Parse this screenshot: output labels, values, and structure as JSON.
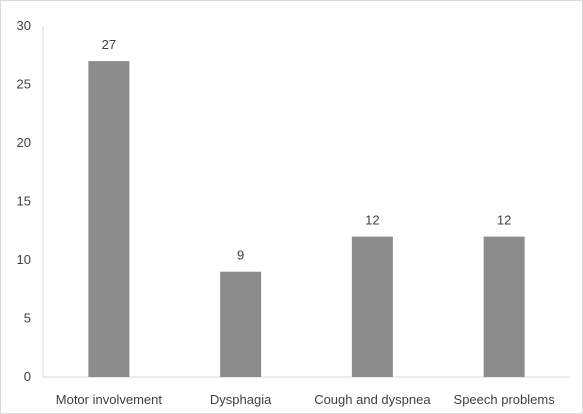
{
  "chart_data": {
    "type": "bar",
    "categories": [
      "Motor involvement",
      "Dysphagia",
      "Cough and dyspnea",
      "Speech problems"
    ],
    "values": [
      27,
      9,
      12,
      12
    ],
    "data_labels": [
      "27",
      "9",
      "12",
      "12"
    ],
    "title": "",
    "xlabel": "",
    "ylabel": "",
    "ylim": [
      0,
      30
    ],
    "yticks": [
      0,
      5,
      10,
      15,
      20,
      25,
      30
    ],
    "ytick_labels": [
      "0",
      "5",
      "10",
      "15",
      "20",
      "25",
      "30"
    ],
    "grid": false,
    "legend": "none",
    "bar_color": "#8c8c8c",
    "axis_color": "#d9d9d9",
    "text_color": "#404040"
  }
}
